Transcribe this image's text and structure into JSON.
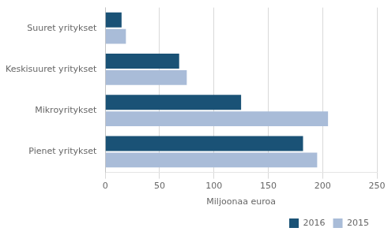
{
  "chart_data": {
    "type": "bar",
    "orientation": "horizontal",
    "categories": [
      "Suuret yritykset",
      "Keskisuuret yritykset",
      "Mikroyritykset",
      "Pienet yritykset"
    ],
    "series": [
      {
        "name": "2016",
        "color": "#1a5276",
        "values": [
          15,
          68,
          125,
          182
        ]
      },
      {
        "name": "2015",
        "color": "#a9bcd8",
        "values": [
          19,
          75,
          205,
          195
        ]
      }
    ],
    "xlabel": "Miljoonaa euroa",
    "xlim": [
      0,
      250
    ],
    "xticks": [
      0,
      50,
      100,
      150,
      200,
      250
    ],
    "grid": true,
    "legend": "lower right"
  }
}
